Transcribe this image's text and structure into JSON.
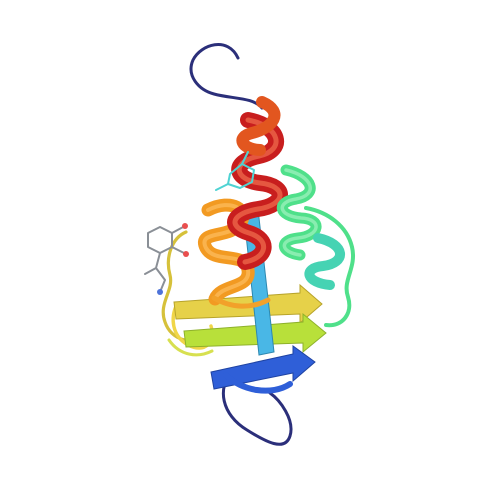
{
  "image": {
    "background": "#ffffff",
    "depiction": "protein-ribbon-structure",
    "colors": {
      "n_terminus": "#2b2f7a",
      "blue": "#2f5fd8",
      "cyan": "#49b7e6",
      "green": "#4fe08a",
      "yellow_green": "#b8e03a",
      "yellow": "#f0d648",
      "orange": "#f29a22",
      "red_orange": "#e2561f",
      "red": "#c81e1e",
      "ligand_gray": "#8a8f96",
      "ligand_cyan": "#4fd3d3"
    }
  }
}
